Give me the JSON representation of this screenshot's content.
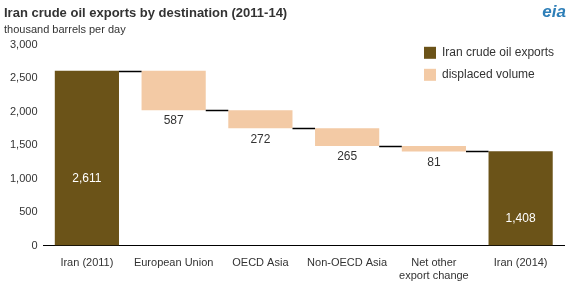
{
  "chart_data": {
    "type": "waterfall",
    "title": "Iran crude oil exports by destination (2011-14)",
    "subtitle": "thousand barrels per day",
    "annotations": [
      "eia"
    ],
    "categories": [
      "Iran (2011)",
      "European Union",
      "OECD Asia",
      "Non-OECD Asia",
      [
        "Net other",
        "export change"
      ],
      "Iran (2014)"
    ],
    "series": [
      {
        "name": "Iran crude oil exports",
        "color": "#6b5318",
        "values": [
          2611,
          null,
          null,
          null,
          null,
          1408
        ],
        "value_labels": [
          "2,611",
          null,
          null,
          null,
          null,
          "1,408"
        ]
      },
      {
        "name": "displaced volume",
        "color": "#f3caa5",
        "values": [
          null,
          587,
          272,
          265,
          81,
          null
        ]
      }
    ],
    "ylim": [
      0,
      3000
    ],
    "yticks": [
      0,
      500,
      {
        "value": 1000,
        "label": "1,000"
      },
      {
        "value": 1500,
        "label": "1,500"
      },
      {
        "value": 2000,
        "label": "2,000"
      },
      {
        "value": 2500,
        "label": "2,500"
      },
      {
        "value": 3000,
        "label": "3,000"
      }
    ],
    "grid": false,
    "legend": "upper right",
    "data_labels": true
  }
}
